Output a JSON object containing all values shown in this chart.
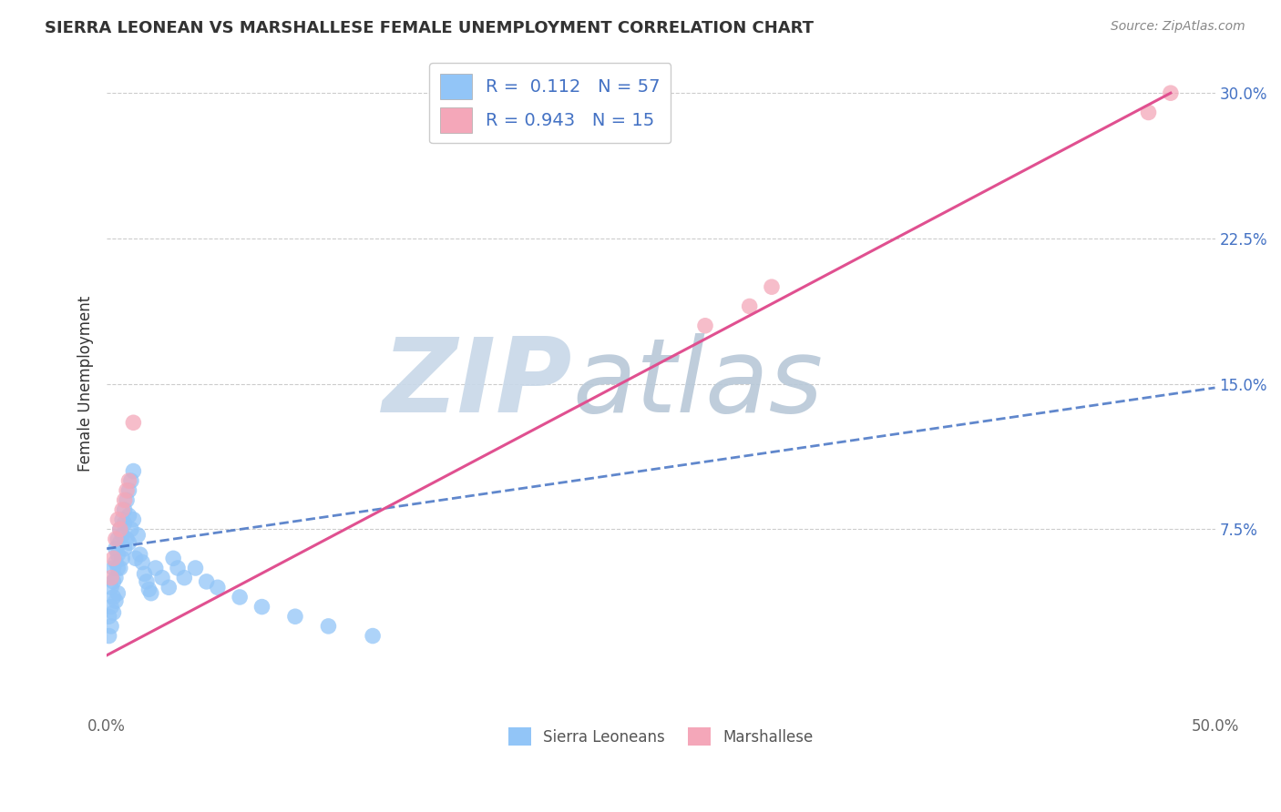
{
  "title": "SIERRA LEONEAN VS MARSHALLESE FEMALE UNEMPLOYMENT CORRELATION CHART",
  "source": "Source: ZipAtlas.com",
  "ylabel": "Female Unemployment",
  "xlim": [
    0.0,
    0.5
  ],
  "ylim": [
    -0.02,
    0.32
  ],
  "xticks": [
    0.0,
    0.1,
    0.2,
    0.3,
    0.4,
    0.5
  ],
  "xtick_labels": [
    "0.0%",
    "",
    "",
    "",
    "",
    "50.0%"
  ],
  "yticks": [
    0.0,
    0.075,
    0.15,
    0.225,
    0.3
  ],
  "ytick_labels": [
    "",
    "7.5%",
    "15.0%",
    "22.5%",
    "30.0%"
  ],
  "sierra_R": 0.112,
  "sierra_N": 57,
  "marshall_R": 0.943,
  "marshall_N": 15,
  "sierra_color": "#92c5f7",
  "marshall_color": "#f4a7b9",
  "sierra_line_color": "#4472c4",
  "marshall_line_color": "#e05090",
  "watermark_zip": "ZIP",
  "watermark_atlas": "atlas",
  "watermark_color_zip": "#c8d8e8",
  "watermark_color_atlas": "#b8c8d8",
  "legend_label_1": "Sierra Leoneans",
  "legend_label_2": "Marshallese",
  "sl_x": [
    0.001,
    0.001,
    0.002,
    0.002,
    0.002,
    0.003,
    0.003,
    0.003,
    0.003,
    0.004,
    0.004,
    0.004,
    0.004,
    0.005,
    0.005,
    0.005,
    0.005,
    0.006,
    0.006,
    0.006,
    0.007,
    0.007,
    0.007,
    0.008,
    0.008,
    0.008,
    0.009,
    0.009,
    0.01,
    0.01,
    0.01,
    0.011,
    0.011,
    0.012,
    0.012,
    0.013,
    0.014,
    0.015,
    0.016,
    0.017,
    0.018,
    0.019,
    0.02,
    0.022,
    0.025,
    0.028,
    0.03,
    0.032,
    0.035,
    0.04,
    0.045,
    0.05,
    0.06,
    0.07,
    0.085,
    0.1,
    0.12
  ],
  "sl_y": [
    0.03,
    0.02,
    0.045,
    0.035,
    0.025,
    0.055,
    0.048,
    0.04,
    0.032,
    0.065,
    0.058,
    0.05,
    0.038,
    0.07,
    0.062,
    0.055,
    0.042,
    0.075,
    0.068,
    0.055,
    0.08,
    0.072,
    0.06,
    0.085,
    0.078,
    0.065,
    0.09,
    0.07,
    0.095,
    0.082,
    0.068,
    0.1,
    0.075,
    0.105,
    0.08,
    0.06,
    0.072,
    0.062,
    0.058,
    0.052,
    0.048,
    0.044,
    0.042,
    0.055,
    0.05,
    0.045,
    0.06,
    0.055,
    0.05,
    0.055,
    0.048,
    0.045,
    0.04,
    0.035,
    0.03,
    0.025,
    0.02
  ],
  "ma_x": [
    0.002,
    0.003,
    0.004,
    0.005,
    0.006,
    0.007,
    0.008,
    0.009,
    0.01,
    0.012,
    0.27,
    0.29,
    0.3,
    0.47,
    0.48
  ],
  "ma_y": [
    0.05,
    0.06,
    0.07,
    0.08,
    0.075,
    0.085,
    0.09,
    0.095,
    0.1,
    0.13,
    0.18,
    0.19,
    0.2,
    0.29,
    0.3
  ],
  "sl_line_x": [
    0.0,
    0.5
  ],
  "sl_line_y": [
    0.065,
    0.148
  ],
  "ma_line_x": [
    0.0,
    0.48
  ],
  "ma_line_y": [
    0.01,
    0.3
  ]
}
